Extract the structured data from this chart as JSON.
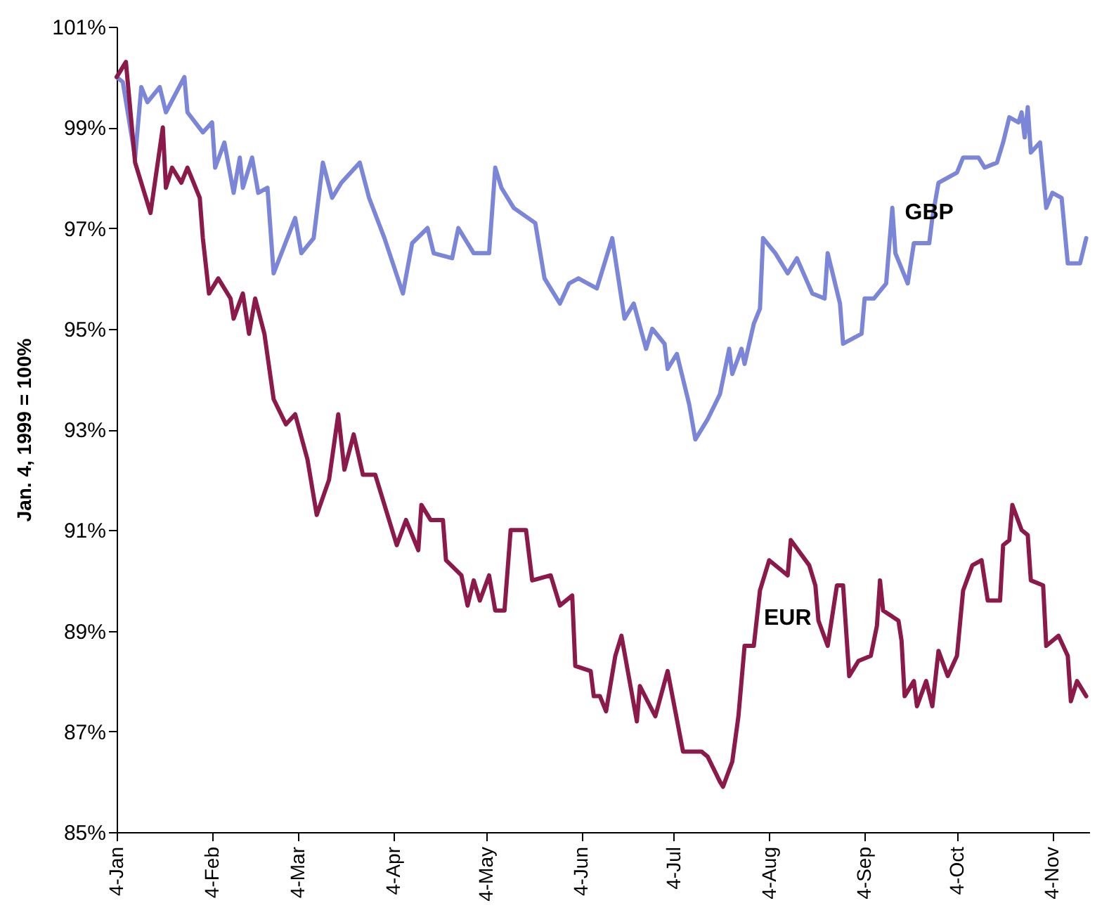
{
  "chart_data": {
    "type": "line",
    "ylabel": "Jan. 4, 1999 = 100%",
    "xlim": [
      "1999-01-04",
      "1999-11-16"
    ],
    "xticks": [
      {
        "value": "1999-01-04",
        "label": "4-Jan"
      },
      {
        "value": "1999-02-04",
        "label": "4-Feb"
      },
      {
        "value": "1999-03-04",
        "label": "4-Mar"
      },
      {
        "value": "1999-04-04",
        "label": "4-Apr"
      },
      {
        "value": "1999-05-04",
        "label": "4-May"
      },
      {
        "value": "1999-06-04",
        "label": "4-Jun"
      },
      {
        "value": "1999-07-04",
        "label": "4-Jul"
      },
      {
        "value": "1999-08-04",
        "label": "4-Aug"
      },
      {
        "value": "1999-09-04",
        "label": "4-Sep"
      },
      {
        "value": "1999-10-04",
        "label": "4-Oct"
      },
      {
        "value": "1999-11-04",
        "label": "4-Nov"
      }
    ],
    "ylim": [
      85,
      101
    ],
    "yticks": [
      {
        "value": 85,
        "label": "85%"
      },
      {
        "value": 87,
        "label": "87%"
      },
      {
        "value": 89,
        "label": "89%"
      },
      {
        "value": 91,
        "label": "91%"
      },
      {
        "value": 93,
        "label": "93%"
      },
      {
        "value": 95,
        "label": "95%"
      },
      {
        "value": 97,
        "label": "97%"
      },
      {
        "value": 99,
        "label": "99%"
      },
      {
        "value": 101,
        "label": "101%"
      }
    ],
    "grid": false,
    "legend": false,
    "marker": "none",
    "line_style": "solid",
    "series": [
      {
        "name": "GBP",
        "color": "#7b86d8",
        "x": [
          "1999-01-04",
          "1999-01-06",
          "1999-01-10",
          "1999-01-12",
          "1999-01-14",
          "1999-01-18",
          "1999-01-20",
          "1999-01-26",
          "1999-01-27",
          "1999-02-01",
          "1999-02-04",
          "1999-02-05",
          "1999-02-08",
          "1999-02-11",
          "1999-02-13",
          "1999-02-14",
          "1999-02-17",
          "1999-02-19",
          "1999-02-22",
          "1999-02-24",
          "1999-03-03",
          "1999-03-05",
          "1999-03-09",
          "1999-03-12",
          "1999-03-15",
          "1999-03-18",
          "1999-03-24",
          "1999-03-27",
          "1999-04-01",
          "1999-04-07",
          "1999-04-10",
          "1999-04-15",
          "1999-04-17",
          "1999-04-23",
          "1999-04-25",
          "1999-04-30",
          "1999-05-05",
          "1999-05-07",
          "1999-05-09",
          "1999-05-13",
          "1999-05-20",
          "1999-05-23",
          "1999-05-28",
          "1999-05-31",
          "1999-06-03",
          "1999-06-09",
          "1999-06-14",
          "1999-06-18",
          "1999-06-21",
          "1999-06-25",
          "1999-06-27",
          "1999-07-01",
          "1999-07-02",
          "1999-07-05",
          "1999-07-09",
          "1999-07-11",
          "1999-07-15",
          "1999-07-19",
          "1999-07-22",
          "1999-07-23",
          "1999-07-26",
          "1999-07-27",
          "1999-07-30",
          "1999-08-01",
          "1999-08-02",
          "1999-08-06",
          "1999-08-10",
          "1999-08-13",
          "1999-08-18",
          "1999-08-22",
          "1999-08-23",
          "1999-08-27",
          "1999-08-28",
          "1999-09-03",
          "1999-09-04",
          "1999-09-07",
          "1999-09-11",
          "1999-09-13",
          "1999-09-14",
          "1999-09-18",
          "1999-09-20",
          "1999-09-25",
          "1999-09-26",
          "1999-09-28",
          "1999-10-04",
          "1999-10-06",
          "1999-10-11",
          "1999-10-13",
          "1999-10-17",
          "1999-10-19",
          "1999-10-21",
          "1999-10-24",
          "1999-10-25",
          "1999-10-26",
          "1999-10-27",
          "1999-10-28",
          "1999-10-31",
          "1999-11-02",
          "1999-11-04",
          "1999-11-07",
          "1999-11-09",
          "1999-11-13",
          "1999-11-15"
        ],
        "values": [
          100.0,
          99.9,
          98.4,
          99.8,
          99.5,
          99.8,
          99.3,
          100.0,
          99.3,
          98.9,
          99.1,
          98.2,
          98.7,
          97.7,
          98.4,
          97.8,
          98.4,
          97.7,
          97.8,
          96.1,
          97.2,
          96.5,
          96.8,
          98.3,
          97.6,
          97.9,
          98.3,
          97.6,
          96.8,
          95.7,
          96.7,
          97.0,
          96.5,
          96.4,
          97.0,
          96.5,
          96.5,
          98.2,
          97.8,
          97.4,
          97.1,
          96.0,
          95.5,
          95.9,
          96.0,
          95.8,
          96.8,
          95.2,
          95.5,
          94.6,
          95.0,
          94.7,
          94.2,
          94.5,
          93.5,
          92.8,
          93.2,
          93.7,
          94.6,
          94.1,
          94.6,
          94.3,
          95.1,
          95.4,
          96.8,
          96.5,
          96.1,
          96.4,
          95.7,
          95.6,
          96.5,
          95.5,
          94.7,
          94.9,
          95.6,
          95.6,
          95.9,
          97.4,
          96.5,
          95.9,
          96.7,
          96.7,
          97.2,
          97.9,
          98.1,
          98.4,
          98.4,
          98.2,
          98.3,
          98.7,
          99.2,
          99.1,
          99.3,
          98.8,
          99.4,
          98.5,
          98.7,
          97.4,
          97.7,
          97.6,
          96.3,
          96.3,
          96.8
        ]
      },
      {
        "name": "EUR",
        "color": "#8b1a4a",
        "x": [
          "1999-01-04",
          "1999-01-07",
          "1999-01-10",
          "1999-01-15",
          "1999-01-19",
          "1999-01-20",
          "1999-01-22",
          "1999-01-25",
          "1999-01-27",
          "1999-01-31",
          "1999-02-01",
          "1999-02-03",
          "1999-02-06",
          "1999-02-10",
          "1999-02-11",
          "1999-02-14",
          "1999-02-16",
          "1999-02-18",
          "1999-02-21",
          "1999-02-24",
          "1999-02-28",
          "1999-03-03",
          "1999-03-07",
          "1999-03-10",
          "1999-03-14",
          "1999-03-17",
          "1999-03-19",
          "1999-03-22",
          "1999-03-25",
          "1999-03-29",
          "1999-04-01",
          "1999-04-05",
          "1999-04-08",
          "1999-04-12",
          "1999-04-13",
          "1999-04-16",
          "1999-04-20",
          "1999-04-21",
          "1999-04-26",
          "1999-04-28",
          "1999-04-30",
          "1999-05-02",
          "1999-05-05",
          "1999-05-07",
          "1999-05-10",
          "1999-05-12",
          "1999-05-17",
          "1999-05-19",
          "1999-05-25",
          "1999-05-28",
          "1999-06-01",
          "1999-06-02",
          "1999-06-07",
          "1999-06-08",
          "1999-06-10",
          "1999-06-12",
          "1999-06-15",
          "1999-06-17",
          "1999-06-22",
          "1999-06-23",
          "1999-06-28",
          "1999-07-02",
          "1999-07-07",
          "1999-07-13",
          "1999-07-15",
          "1999-07-19",
          "1999-07-20",
          "1999-07-23",
          "1999-07-25",
          "1999-07-27",
          "1999-07-30",
          "1999-08-01",
          "1999-08-04",
          "1999-08-10",
          "1999-08-11",
          "1999-08-17",
          "1999-08-19",
          "1999-08-20",
          "1999-08-23",
          "1999-08-26",
          "1999-08-28",
          "1999-08-30",
          "1999-09-02",
          "1999-09-06",
          "1999-09-08",
          "1999-09-09",
          "1999-09-10",
          "1999-09-15",
          "1999-09-16",
          "1999-09-17",
          "1999-09-20",
          "1999-09-21",
          "1999-09-24",
          "1999-09-26",
          "1999-09-28",
          "1999-10-01",
          "1999-10-04",
          "1999-10-06",
          "1999-10-09",
          "1999-10-12",
          "1999-10-14",
          "1999-10-18",
          "1999-10-19",
          "1999-10-21",
          "1999-10-22",
          "1999-10-25",
          "1999-10-27",
          "1999-10-28",
          "1999-11-01",
          "1999-11-02",
          "1999-11-06",
          "1999-11-09",
          "1999-11-10",
          "1999-11-12",
          "1999-11-15"
        ],
        "values": [
          100.0,
          100.3,
          98.3,
          97.3,
          99.0,
          97.8,
          98.2,
          97.9,
          98.2,
          97.6,
          96.8,
          95.7,
          96.0,
          95.6,
          95.2,
          95.7,
          94.9,
          95.6,
          94.9,
          93.6,
          93.1,
          93.3,
          92.4,
          91.3,
          92.0,
          93.3,
          92.2,
          92.9,
          92.1,
          92.1,
          91.5,
          90.7,
          91.2,
          90.6,
          91.5,
          91.2,
          91.2,
          90.4,
          90.1,
          89.5,
          90.0,
          89.6,
          90.1,
          89.4,
          89.4,
          91.0,
          91.0,
          90.0,
          90.1,
          89.5,
          89.7,
          88.3,
          88.2,
          87.7,
          87.7,
          87.4,
          88.5,
          88.9,
          87.2,
          87.9,
          87.3,
          88.2,
          86.6,
          86.6,
          86.5,
          86.0,
          85.9,
          86.4,
          87.3,
          88.7,
          88.7,
          89.8,
          90.4,
          90.1,
          90.8,
          90.3,
          89.9,
          89.2,
          88.7,
          89.9,
          89.9,
          88.1,
          88.4,
          88.5,
          89.1,
          90.0,
          89.4,
          89.2,
          88.8,
          87.7,
          88.0,
          87.5,
          88.0,
          87.5,
          88.6,
          88.1,
          88.5,
          89.8,
          90.3,
          90.4,
          89.6,
          89.6,
          90.7,
          90.8,
          91.5,
          91.0,
          90.9,
          90.0,
          89.9,
          88.7,
          88.9,
          88.5,
          87.6,
          88.0,
          87.7
        ]
      }
    ]
  }
}
